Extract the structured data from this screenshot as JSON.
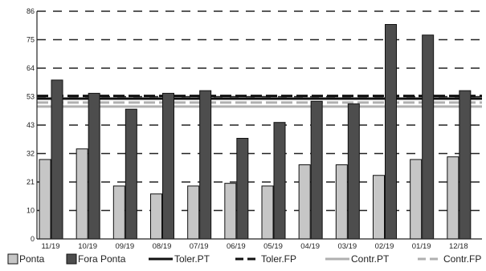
{
  "chart_data": {
    "type": "bar",
    "title": "",
    "xlabel": "",
    "ylabel": "",
    "categories": [
      "11/19",
      "10/19",
      "09/19",
      "08/19",
      "07/19",
      "06/19",
      "05/19",
      "04/19",
      "03/19",
      "02/19",
      "01/19",
      "12/18"
    ],
    "series": [
      {
        "name": "Ponta",
        "color": "#c6c6c6",
        "values": [
          30,
          34,
          20,
          17,
          20,
          21,
          20,
          28,
          28,
          24,
          30,
          31
        ]
      },
      {
        "name": "Fora Ponta",
        "color": "#4d4d4d",
        "values": [
          60,
          55,
          49,
          55,
          56,
          38,
          44,
          52,
          51,
          81,
          77,
          56
        ]
      }
    ],
    "lines": [
      {
        "name": "Toler.PT",
        "value": 53,
        "style": "solid",
        "color": "#111111"
      },
      {
        "name": "Toler.FP",
        "value": 54,
        "style": "dashed",
        "color": "#111111"
      },
      {
        "name": "Contr.PT",
        "value": 50,
        "style": "solid",
        "color": "#b0b0b0"
      },
      {
        "name": "Contr.FP",
        "value": 51.5,
        "style": "dashed",
        "color": "#b0b0b0"
      }
    ],
    "yticks": [
      "0",
      "10",
      "21",
      "32",
      "43",
      "53",
      "64",
      "75",
      "86"
    ],
    "ylim": [
      0,
      86
    ],
    "grid": true,
    "grid_style": "dashed horizontal",
    "legend_position": "bottom"
  }
}
